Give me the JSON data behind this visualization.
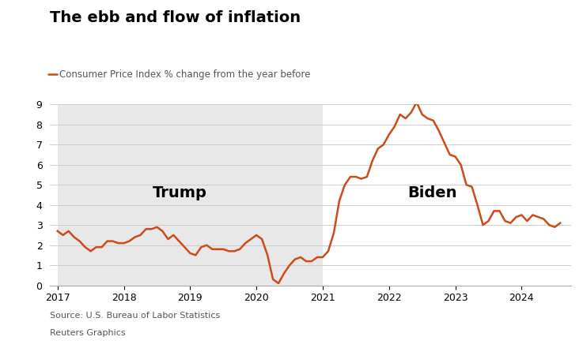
{
  "title": "The ebb and flow of inflation",
  "subtitle": "Consumer Price Index % change from the year before",
  "source": "Source: U.S. Bureau of Labor Statistics",
  "credit": "Reuters Graphics",
  "line_color": "#CC4A1B",
  "background_color": "#FFFFFF",
  "trump_bg_color": "#E8E8E8",
  "trump_label": "Trump",
  "biden_label": "Biden",
  "trump_start": 2017.0,
  "trump_end": 2021.0,
  "xlim_left": 2016.88,
  "xlim_right": 2024.75,
  "ylim": [
    0,
    9
  ],
  "yticks": [
    0,
    1,
    2,
    3,
    4,
    5,
    6,
    7,
    8,
    9
  ],
  "xticks": [
    2017,
    2018,
    2019,
    2020,
    2021,
    2022,
    2023,
    2024
  ],
  "data": [
    [
      2017.0,
      2.7
    ],
    [
      2017.083,
      2.5
    ],
    [
      2017.167,
      2.7
    ],
    [
      2017.25,
      2.4
    ],
    [
      2017.333,
      2.2
    ],
    [
      2017.417,
      1.9
    ],
    [
      2017.5,
      1.7
    ],
    [
      2017.583,
      1.9
    ],
    [
      2017.667,
      1.9
    ],
    [
      2017.75,
      2.2
    ],
    [
      2017.833,
      2.2
    ],
    [
      2017.917,
      2.1
    ],
    [
      2018.0,
      2.1
    ],
    [
      2018.083,
      2.2
    ],
    [
      2018.167,
      2.4
    ],
    [
      2018.25,
      2.5
    ],
    [
      2018.333,
      2.8
    ],
    [
      2018.417,
      2.8
    ],
    [
      2018.5,
      2.9
    ],
    [
      2018.583,
      2.7
    ],
    [
      2018.667,
      2.3
    ],
    [
      2018.75,
      2.5
    ],
    [
      2018.833,
      2.2
    ],
    [
      2018.917,
      1.9
    ],
    [
      2019.0,
      1.6
    ],
    [
      2019.083,
      1.5
    ],
    [
      2019.167,
      1.9
    ],
    [
      2019.25,
      2.0
    ],
    [
      2019.333,
      1.8
    ],
    [
      2019.417,
      1.8
    ],
    [
      2019.5,
      1.8
    ],
    [
      2019.583,
      1.7
    ],
    [
      2019.667,
      1.7
    ],
    [
      2019.75,
      1.8
    ],
    [
      2019.833,
      2.1
    ],
    [
      2019.917,
      2.3
    ],
    [
      2020.0,
      2.5
    ],
    [
      2020.083,
      2.3
    ],
    [
      2020.167,
      1.5
    ],
    [
      2020.25,
      0.3
    ],
    [
      2020.333,
      0.1
    ],
    [
      2020.417,
      0.6
    ],
    [
      2020.5,
      1.0
    ],
    [
      2020.583,
      1.3
    ],
    [
      2020.667,
      1.4
    ],
    [
      2020.75,
      1.2
    ],
    [
      2020.833,
      1.2
    ],
    [
      2020.917,
      1.4
    ],
    [
      2021.0,
      1.4
    ],
    [
      2021.083,
      1.7
    ],
    [
      2021.167,
      2.6
    ],
    [
      2021.25,
      4.2
    ],
    [
      2021.333,
      5.0
    ],
    [
      2021.417,
      5.4
    ],
    [
      2021.5,
      5.4
    ],
    [
      2021.583,
      5.3
    ],
    [
      2021.667,
      5.4
    ],
    [
      2021.75,
      6.2
    ],
    [
      2021.833,
      6.8
    ],
    [
      2021.917,
      7.0
    ],
    [
      2022.0,
      7.5
    ],
    [
      2022.083,
      7.9
    ],
    [
      2022.167,
      8.5
    ],
    [
      2022.25,
      8.3
    ],
    [
      2022.333,
      8.6
    ],
    [
      2022.417,
      9.1
    ],
    [
      2022.5,
      8.5
    ],
    [
      2022.583,
      8.3
    ],
    [
      2022.667,
      8.2
    ],
    [
      2022.75,
      7.7
    ],
    [
      2022.833,
      7.1
    ],
    [
      2022.917,
      6.5
    ],
    [
      2023.0,
      6.4
    ],
    [
      2023.083,
      6.0
    ],
    [
      2023.167,
      5.0
    ],
    [
      2023.25,
      4.9
    ],
    [
      2023.333,
      4.0
    ],
    [
      2023.417,
      3.0
    ],
    [
      2023.5,
      3.2
    ],
    [
      2023.583,
      3.7
    ],
    [
      2023.667,
      3.7
    ],
    [
      2023.75,
      3.2
    ],
    [
      2023.833,
      3.1
    ],
    [
      2023.917,
      3.4
    ],
    [
      2024.0,
      3.5
    ],
    [
      2024.083,
      3.2
    ],
    [
      2024.167,
      3.5
    ],
    [
      2024.25,
      3.4
    ],
    [
      2024.333,
      3.3
    ],
    [
      2024.417,
      3.0
    ],
    [
      2024.5,
      2.9
    ],
    [
      2024.583,
      3.1
    ]
  ]
}
